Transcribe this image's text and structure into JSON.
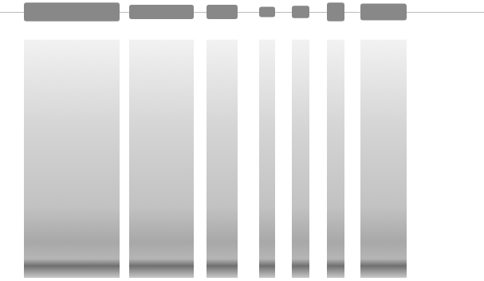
{
  "chart_data": {
    "type": "spectrogram",
    "tick_labels": false,
    "xlim": [
      0,
      607
    ],
    "ylim": [
      0,
      1
    ],
    "amplitude_lim": [
      -1,
      1
    ],
    "segments": {
      "start": [
        30,
        162,
        259,
        325,
        366,
        410,
        452
      ],
      "end": [
        150,
        243,
        298,
        345,
        388,
        432,
        510
      ],
      "amplitude": [
        0.9,
        0.7,
        0.7,
        0.5,
        0.6,
        0.9,
        0.8
      ],
      "top": [
        0.95,
        0.95,
        0.95,
        0.95,
        0.95,
        0.95,
        0.95
      ]
    }
  }
}
